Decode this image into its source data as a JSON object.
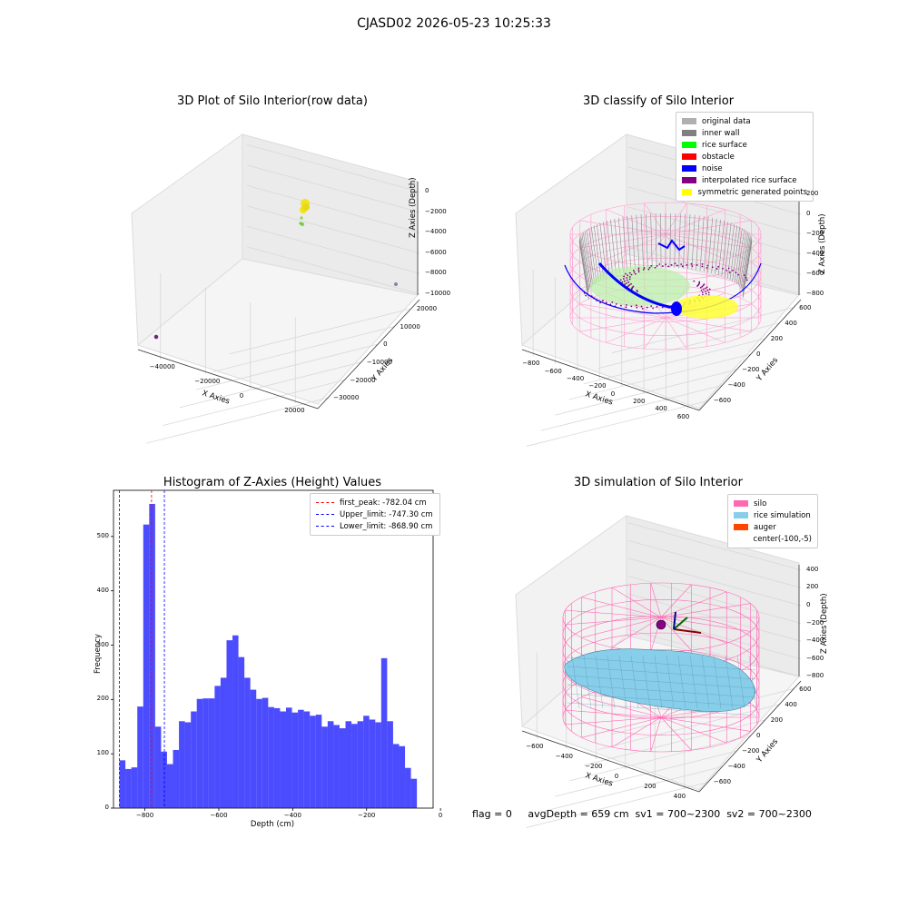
{
  "suptitle": "CJASD02 2026-05-23 10:25:33",
  "status_text": "flag = 0     avgDepth = 659 cm  sv1 = 700~2300  sv2 = 700~2300",
  "panels": {
    "raw": {
      "title": "3D Plot of Silo Interior(row data)",
      "x_label": "X Axies",
      "y_label": "Y Axies",
      "z_label": "Z Axies (Depth)",
      "x_ticks": [
        "−40000",
        "−20000",
        "0",
        "20000"
      ],
      "y_ticks": [
        "−30000",
        "−20000",
        "−10000",
        "0",
        "10000",
        "20000"
      ],
      "z_ticks": [
        "0",
        "−2000",
        "−4000",
        "−6000",
        "−8000",
        "−10000"
      ]
    },
    "classify": {
      "title": "3D classify of Silo Interior",
      "x_label": "X Axies",
      "y_label": "Y Axies",
      "z_label": "Z Axies (Depth)",
      "x_ticks": [
        "−800",
        "−600",
        "−400",
        "−200",
        "0",
        "200",
        "400",
        "600"
      ],
      "y_ticks": [
        "−600",
        "−400",
        "−200",
        "0",
        "200",
        "400",
        "600"
      ],
      "z_ticks": [
        "200",
        "0",
        "−200",
        "−400",
        "−600",
        "−800"
      ],
      "legend": [
        {
          "label": "original data",
          "color": "#b0b0b0"
        },
        {
          "label": "inner wall",
          "color": "#808080"
        },
        {
          "label": "rice surface",
          "color": "#00ff00"
        },
        {
          "label": "obstacle",
          "color": "#ff0000"
        },
        {
          "label": "noise",
          "color": "#0000ff"
        },
        {
          "label": "interpolated rice surface",
          "color": "#800080"
        },
        {
          "label": "symmetric generated points",
          "color": "#ffff00"
        }
      ]
    },
    "simulation": {
      "title": "3D simulation of Silo Interior",
      "x_label": "X Axies",
      "y_label": "Y Axies",
      "z_label": "Z Axies (Depth)",
      "x_ticks": [
        "−600",
        "−400",
        "−200",
        "0",
        "200",
        "400"
      ],
      "y_ticks": [
        "−600",
        "−400",
        "−200",
        "0",
        "200",
        "400",
        "600"
      ],
      "z_ticks": [
        "400",
        "200",
        "0",
        "−200",
        "−400",
        "−600",
        "−800"
      ],
      "legend": [
        {
          "label": "silo",
          "color": "#ff69b4"
        },
        {
          "label": "rice simulation",
          "color": "#87ceeb"
        },
        {
          "label": "auger",
          "color": "#ff4500"
        },
        {
          "label": "center(-100,-5)",
          "color": ""
        }
      ]
    }
  },
  "chart_data": {
    "type": "bar",
    "title": "Histogram of Z-Axies (Height) Values",
    "xlabel": "Depth (cm)",
    "ylabel": "Frequency",
    "xlim": [
      -885,
      -20
    ],
    "ylim": [
      0,
      585
    ],
    "x_ticks": [
      -800,
      -600,
      -400,
      -200,
      0
    ],
    "y_ticks": [
      0,
      100,
      200,
      300,
      400,
      500
    ],
    "bar_color": "#0000ff",
    "bin_start": -868.9,
    "bin_width": 16.1,
    "values": [
      88,
      72,
      75,
      187,
      522,
      560,
      150,
      104,
      81,
      107,
      160,
      158,
      178,
      201,
      202,
      202,
      225,
      240,
      309,
      318,
      278,
      240,
      218,
      201,
      203,
      186,
      184,
      178,
      185,
      176,
      181,
      178,
      170,
      172,
      150,
      160,
      153,
      147,
      160,
      155,
      160,
      170,
      163,
      158,
      276,
      160,
      118,
      114,
      74,
      54
    ],
    "vlines": [
      {
        "label": "first_peak: -782.04 cm",
        "x": -782.04,
        "color": "#ff0000"
      },
      {
        "label": "Upper_limit: -747.30 cm",
        "x": -747.3,
        "color": "#0000ff"
      },
      {
        "label": "Lower_limit: -868.90 cm",
        "x": -868.9,
        "color": "#0000ff"
      }
    ],
    "legend_position": "top-right"
  }
}
